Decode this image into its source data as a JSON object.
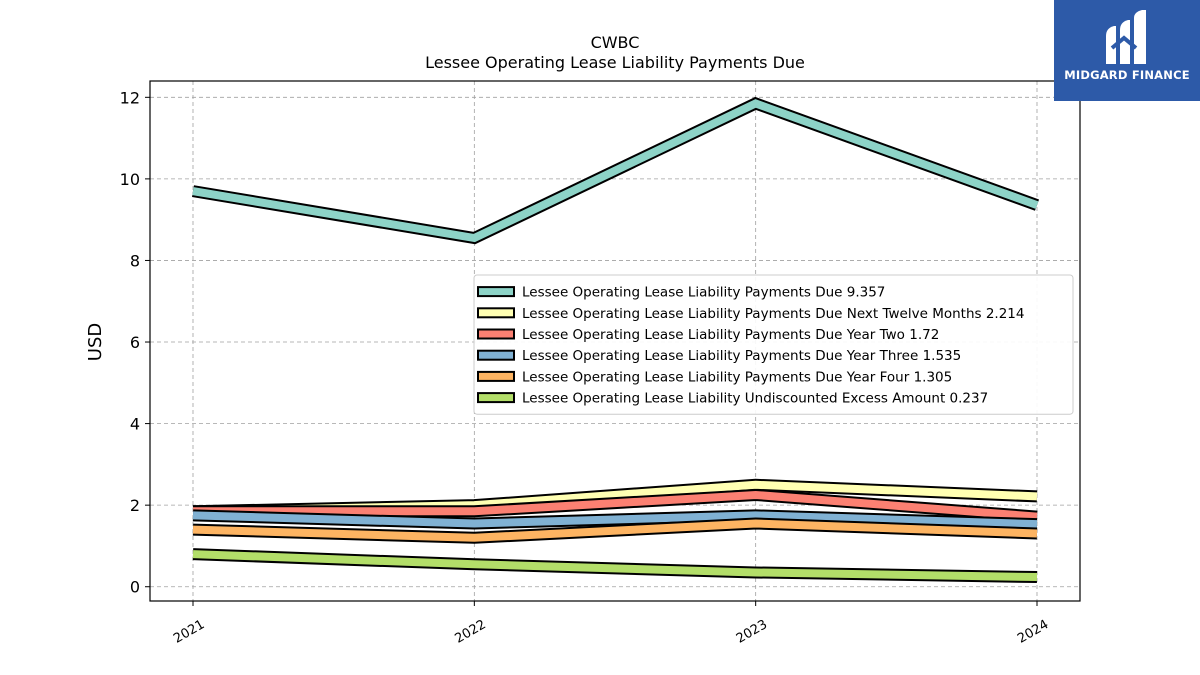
{
  "logo": {
    "text": "MIDGARD FINANCE",
    "icon": "midgard-m-logo-icon",
    "bg_color": "#2d5aa8"
  },
  "chart_data": {
    "type": "line",
    "title": "CWBC",
    "subtitle": "Lessee Operating Lease Liability Payments Due",
    "xlabel": "",
    "ylabel": "USD",
    "categories": [
      "2021",
      "2022",
      "2023",
      "2024"
    ],
    "ylim": [
      -0.35,
      12.4
    ],
    "yticks": [
      0,
      2,
      4,
      6,
      8,
      10,
      12
    ],
    "grid": true,
    "legend_position": "center-right",
    "series": [
      {
        "name": "Lessee Operating Lease Liability Payments Due",
        "legend_value": "9.357",
        "color": "#8dd3c7",
        "values": [
          9.7,
          8.55,
          11.85,
          9.357
        ]
      },
      {
        "name": "Lessee Operating Lease Liability Payments Due Next Twelve Months",
        "legend_value": "2.214",
        "color": "#ffffb3",
        "values": [
          1.85,
          2.0,
          2.5,
          2.214
        ]
      },
      {
        "name": "Lessee Operating Lease Liability Payments Due Year Two",
        "legend_value": "1.72",
        "color": "#fb8072",
        "values": [
          1.85,
          1.85,
          2.25,
          1.72
        ]
      },
      {
        "name": "Lessee Operating Lease Liability Payments Due Year Three",
        "legend_value": "1.535",
        "color": "#80b1d3",
        "values": [
          1.75,
          1.55,
          1.75,
          1.535
        ]
      },
      {
        "name": "Lessee Operating Lease Liability Payments Due Year Four",
        "legend_value": "1.305",
        "color": "#fdb462",
        "values": [
          1.4,
          1.2,
          1.55,
          1.305
        ]
      },
      {
        "name": "Lessee Operating Lease Liability Undiscounted Excess Amount",
        "legend_value": "0.237",
        "color": "#b3de69",
        "values": [
          0.8,
          0.55,
          0.35,
          0.237
        ]
      }
    ]
  }
}
